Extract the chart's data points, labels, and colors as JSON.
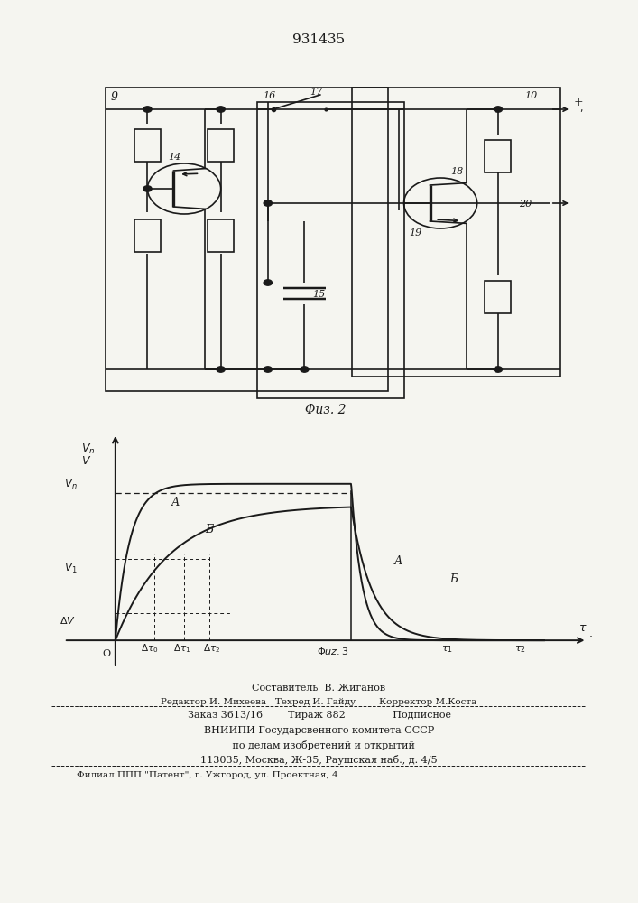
{
  "title": "931435",
  "bg": "#f5f5f0",
  "lc": "#1a1a1a",
  "fig2_caption": "Φиз. 2",
  "fig3_caption": "Φиз. 3",
  "bottom_lines": [
    "Составитель  В. Жиганов",
    "Редактор И. Михеева   Техред И. Гайду        Корректор М.Коста",
    "Заказ 3613/16        Тираж 882               Подписное",
    "ВНИИПИ Государсвенного комитета СССР",
    "   по делам изобретений и открытий",
    "113035, Москва, Ж-35, Раушская наб., д. 4/5",
    "Филиал ППП \"Патент\", г. Ужгород, ул. Проектная, 4"
  ]
}
